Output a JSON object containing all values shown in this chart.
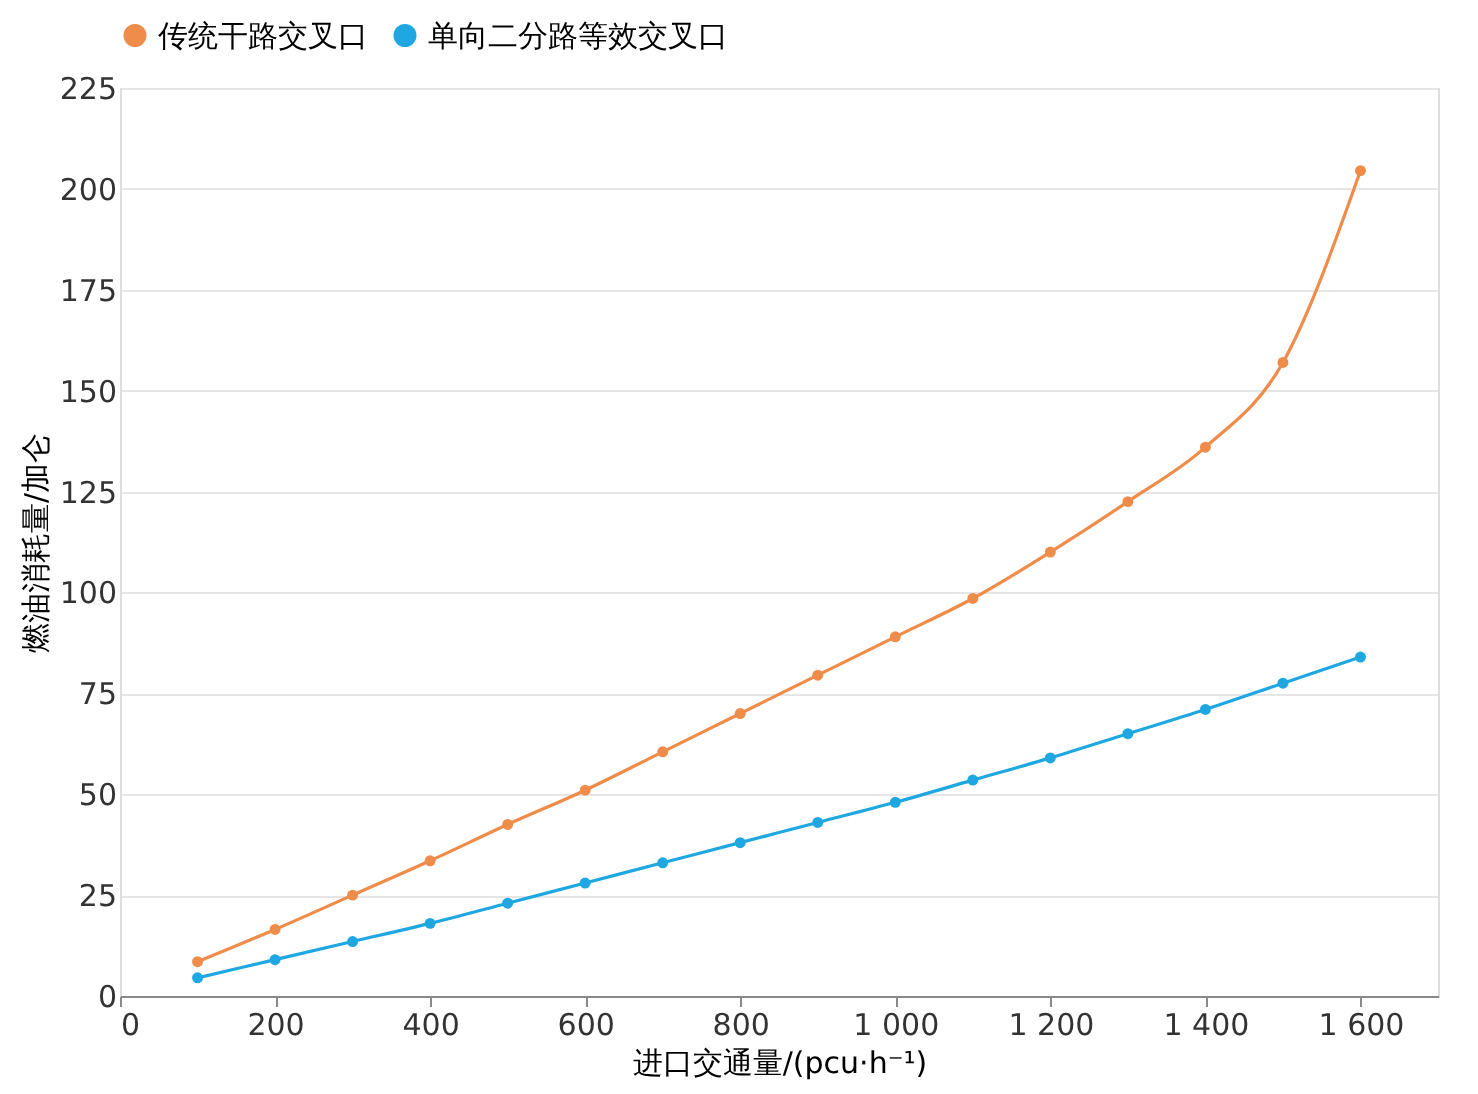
{
  "chart_data": {
    "type": "line",
    "xlabel": "进口交通量/(pcu·h⁻¹)",
    "ylabel": "燃油消耗量/加仑",
    "x": [
      100,
      200,
      300,
      400,
      500,
      600,
      700,
      800,
      900,
      1000,
      1100,
      1200,
      1300,
      1400,
      1500,
      1600
    ],
    "series": [
      {
        "name": "传统干路交叉口",
        "color": "#f08c4a",
        "values": [
          8.5,
          16.5,
          25,
          33.5,
          42.5,
          51,
          60.5,
          70,
          79.5,
          89,
          98.5,
          110,
          122.5,
          136,
          157,
          204.5
        ]
      },
      {
        "name": "单向二分路等效交叉口",
        "color": "#1ea7e0",
        "values": [
          4.5,
          9,
          13.5,
          18,
          23,
          28,
          33,
          38,
          43,
          48,
          53.5,
          59,
          65,
          71,
          77.5,
          84
        ]
      }
    ],
    "xlim": [
      0,
      1700
    ],
    "xticks": [
      0,
      200,
      400,
      600,
      800,
      {
        "value": 1000,
        "label": "1 000"
      },
      {
        "value": 1200,
        "label": "1 200"
      },
      {
        "value": 1400,
        "label": "1 400"
      },
      {
        "value": 1600,
        "label": "1 600"
      }
    ],
    "ylim": [
      0,
      225
    ],
    "yticks": [
      0,
      25,
      50,
      75,
      100,
      125,
      150,
      175,
      200,
      225
    ],
    "grid": "y",
    "legend": "top",
    "marker": "circle",
    "line_style": "solid"
  }
}
